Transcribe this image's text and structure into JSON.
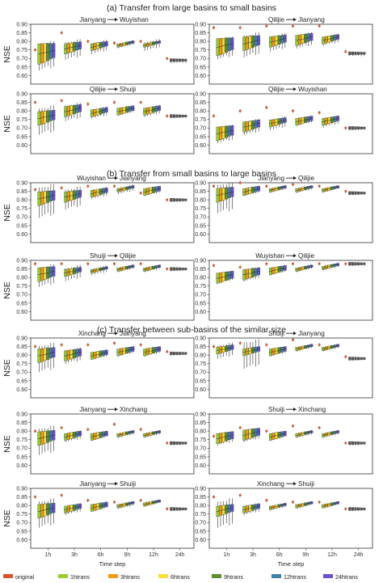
{
  "chart_data": {
    "type": "box",
    "ylim": [
      0.55,
      0.9
    ],
    "y_ticks": [
      "0.90",
      "0.85",
      "0.80",
      "0.75",
      "0.70",
      "0.65",
      "0.60"
    ],
    "x_ticks": [
      "1h",
      "3h",
      "6h",
      "9h",
      "12h",
      "24h"
    ],
    "xlabel": "Time step",
    "ylabel": "NSE",
    "legend": [
      {
        "name": "original",
        "color": "#d9542b"
      },
      {
        "name": "1htrans",
        "color": "#9acd32"
      },
      {
        "name": "3htrans",
        "color": "#f39c12"
      },
      {
        "name": "6htrans",
        "color": "#f7e03a"
      },
      {
        "name": "9htrans",
        "color": "#5d8f2e"
      },
      {
        "name": "12htrans",
        "color": "#3f7fa8"
      },
      {
        "name": "24htrans",
        "color": "#6a4fcf"
      }
    ],
    "sections": [
      {
        "title": "(a) Transfer from large basins to small basins",
        "panels": [
          {
            "from": "Jianyang",
            "to": "Wuyishan",
            "original": [
              0.75,
              0.85,
              0.8,
              0.79,
              0.8,
              0.7
            ],
            "median": [
              0.74,
              0.77,
              0.78,
              0.79,
              0.79,
              0.69
            ],
            "spread": [
              0.06,
              0.03,
              0.02,
              0.01,
              0.01,
              0.01
            ],
            "whisker": [
              0.12,
              0.08,
              0.05,
              0.02,
              0.04,
              0.02
            ]
          },
          {
            "from": "Qilijie",
            "to": "Jianyang",
            "original": [
              0.88,
              0.88,
              0.89,
              0.89,
              0.89,
              0.74
            ],
            "median": [
              0.78,
              0.8,
              0.81,
              0.82,
              0.82,
              0.73
            ],
            "spread": [
              0.05,
              0.04,
              0.03,
              0.03,
              0.02,
              0.01
            ],
            "whisker": [
              0.09,
              0.1,
              0.07,
              0.06,
              0.04,
              0.02
            ]
          },
          {
            "from": "Qilijie",
            "to": "Shuiji",
            "original": [
              0.85,
              0.86,
              0.84,
              0.85,
              0.85,
              0.77
            ],
            "median": [
              0.77,
              0.81,
              0.8,
              0.81,
              0.81,
              0.77
            ],
            "spread": [
              0.04,
              0.03,
              0.02,
              0.02,
              0.02,
              0.01
            ],
            "whisker": [
              0.12,
              0.07,
              0.04,
              0.03,
              0.04,
              0.01
            ]
          },
          {
            "from": "Qilijie",
            "to": "Wuyishan",
            "original": [
              0.77,
              0.8,
              0.82,
              0.8,
              0.79,
              0.7
            ],
            "median": [
              0.68,
              0.72,
              0.74,
              0.75,
              0.75,
              0.7
            ],
            "spread": [
              0.04,
              0.03,
              0.02,
              0.02,
              0.02,
              0.01
            ],
            "whisker": [
              0.07,
              0.06,
              0.05,
              0.03,
              0.04,
              0.01
            ]
          }
        ]
      },
      {
        "title": "(b) Transfer from small basins to large basins",
        "panels": [
          {
            "from": "Wuyishan",
            "to": "Jianyang",
            "original": [
              0.86,
              0.87,
              0.88,
              0.88,
              0.84,
              0.8
            ],
            "median": [
              0.82,
              0.83,
              0.85,
              0.87,
              0.86,
              0.8
            ],
            "spread": [
              0.04,
              0.03,
              0.02,
              0.01,
              0.02,
              0.01
            ],
            "whisker": [
              0.14,
              0.09,
              0.04,
              0.03,
              0.03,
              0.01
            ]
          },
          {
            "from": "Jianyang",
            "to": "Qilijie",
            "original": [
              0.88,
              0.9,
              0.88,
              0.89,
              0.88,
              0.85
            ],
            "median": [
              0.84,
              0.86,
              0.87,
              0.87,
              0.87,
              0.84
            ],
            "spread": [
              0.04,
              0.02,
              0.01,
              0.01,
              0.01,
              0.01
            ],
            "whisker": [
              0.13,
              0.03,
              0.02,
              0.02,
              0.01,
              0.01
            ]
          },
          {
            "from": "Shuiji",
            "to": "Qilijie",
            "original": [
              0.88,
              0.88,
              0.88,
              0.88,
              0.88,
              0.85
            ],
            "median": [
              0.83,
              0.84,
              0.85,
              0.86,
              0.86,
              0.85
            ],
            "spread": [
              0.04,
              0.02,
              0.01,
              0.01,
              0.01,
              0.01
            ],
            "whisker": [
              0.09,
              0.06,
              0.03,
              0.02,
              0.02,
              0.01
            ]
          },
          {
            "from": "Wuyishan",
            "to": "Qilijie",
            "original": [
              0.87,
              0.86,
              0.88,
              0.88,
              0.88,
              0.88
            ],
            "median": [
              0.81,
              0.83,
              0.85,
              0.86,
              0.87,
              0.88
            ],
            "spread": [
              0.03,
              0.03,
              0.02,
              0.01,
              0.01,
              0.01
            ],
            "whisker": [
              0.04,
              0.05,
              0.03,
              0.02,
              0.02,
              0.01
            ]
          }
        ]
      },
      {
        "title": "(c) Transfer between sub-basins of the similar size",
        "panels": [
          {
            "from": "Xinchang",
            "to": "Jianyang",
            "original": [
              0.85,
              0.86,
              0.86,
              0.87,
              0.86,
              0.82
            ],
            "median": [
              0.81,
              0.81,
              0.81,
              0.83,
              0.83,
              0.81
            ],
            "spread": [
              0.04,
              0.03,
              0.02,
              0.02,
              0.02,
              0.01
            ],
            "whisker": [
              0.12,
              0.06,
              0.03,
              0.03,
              0.03,
              0.01
            ]
          },
          {
            "from": "Shuiji",
            "to": "Jianyang",
            "original": [
              0.85,
              0.87,
              0.86,
              0.89,
              0.86,
              0.79
            ],
            "median": [
              0.84,
              0.83,
              0.83,
              0.85,
              0.85,
              0.78
            ],
            "spread": [
              0.02,
              0.02,
              0.02,
              0.01,
              0.01,
              0.01
            ],
            "whisker": [
              0.06,
              0.12,
              0.03,
              0.02,
              0.02,
              0.01
            ]
          },
          {
            "from": "Jianyang",
            "to": "Xinchang",
            "original": [
              0.8,
              0.82,
              0.81,
              0.84,
              0.81,
              0.73
            ],
            "median": [
              0.77,
              0.78,
              0.78,
              0.79,
              0.79,
              0.73
            ],
            "spread": [
              0.04,
              0.02,
              0.02,
              0.01,
              0.01,
              0.01
            ],
            "whisker": [
              0.12,
              0.04,
              0.02,
              0.02,
              0.02,
              0.01
            ]
          },
          {
            "from": "Shuiji",
            "to": "Xinchang",
            "original": [
              0.77,
              0.82,
              0.8,
              0.83,
              0.82,
              0.73
            ],
            "median": [
              0.77,
              0.79,
              0.78,
              0.79,
              0.79,
              0.73
            ],
            "spread": [
              0.03,
              0.03,
              0.02,
              0.01,
              0.01,
              0.01
            ],
            "whisker": [
              0.05,
              0.05,
              0.02,
              0.02,
              0.02,
              0.01
            ]
          },
          {
            "from": "Jianyang",
            "to": "Shuiji",
            "original": [
              0.85,
              0.86,
              0.83,
              0.82,
              0.83,
              0.78
            ],
            "median": [
              0.78,
              0.79,
              0.8,
              0.81,
              0.82,
              0.78
            ],
            "spread": [
              0.04,
              0.02,
              0.02,
              0.01,
              0.01,
              0.01
            ],
            "whisker": [
              0.12,
              0.04,
              0.02,
              0.02,
              0.01,
              0.01
            ]
          },
          {
            "from": "Xinchang",
            "to": "Shuiji",
            "original": [
              0.85,
              0.86,
              0.83,
              0.82,
              0.82,
              0.78
            ],
            "median": [
              0.78,
              0.79,
              0.8,
              0.81,
              0.81,
              0.78
            ],
            "spread": [
              0.03,
              0.02,
              0.01,
              0.01,
              0.01,
              0.01
            ],
            "whisker": [
              0.12,
              0.04,
              0.02,
              0.01,
              0.01,
              0.01
            ]
          }
        ]
      }
    ]
  }
}
